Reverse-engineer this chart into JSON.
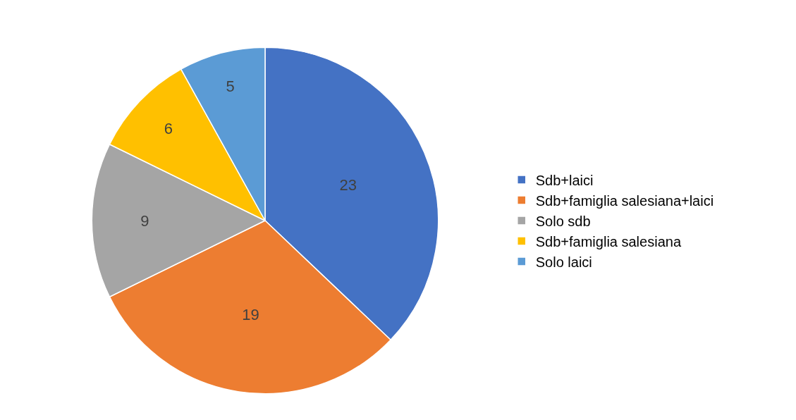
{
  "chart_data": {
    "type": "pie",
    "categories": [
      "Sdb+laici",
      "Sdb+famiglia salesiana+laici",
      "Solo sdb",
      "Sdb+famiglia salesiana",
      "Solo laici"
    ],
    "values": [
      23,
      19,
      9,
      6,
      5
    ],
    "colors": [
      "#4472c4",
      "#ed7d31",
      "#a5a5a5",
      "#ffc000",
      "#5b9bd5"
    ],
    "data_labels": true,
    "legend": "right"
  }
}
